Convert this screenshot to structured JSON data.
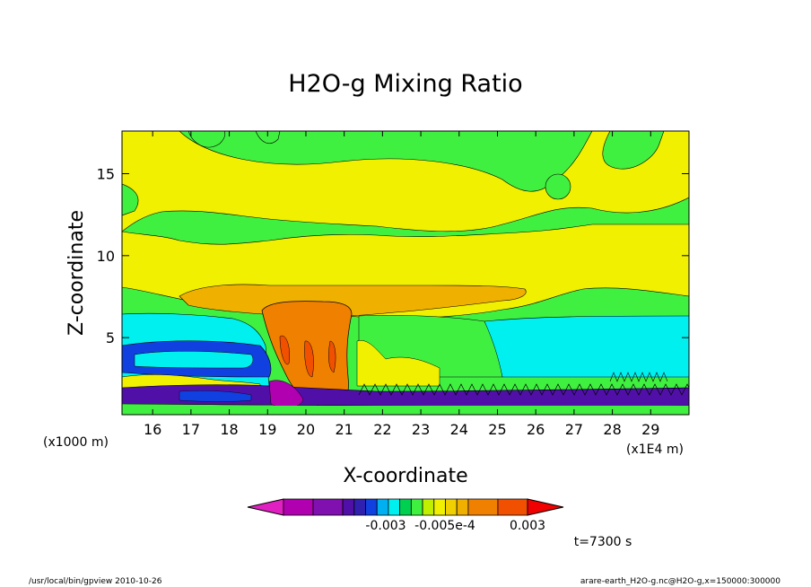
{
  "chart_data": {
    "type": "heatmap",
    "title": "H2O-g Mixing Ratio",
    "xlabel": "X-coordinate",
    "ylabel": "Z-coordinate",
    "x_unit_left": "(x1000 m)",
    "x_unit_right": "(x1E4 m)",
    "xlim": [
      15.2,
      30.0
    ],
    "ylim": [
      0.3,
      17.6
    ],
    "x_ticks": [
      "16",
      "17",
      "18",
      "19",
      "20",
      "21",
      "22",
      "23",
      "24",
      "25",
      "26",
      "27",
      "28",
      "29"
    ],
    "y_ticks": [
      "5",
      "10",
      "15"
    ],
    "colorbar": {
      "labels": [
        "-0.003",
        "-0.005e-4",
        "0.003"
      ],
      "colors": [
        "#e020c0",
        "#b000b0",
        "#8010b0",
        "#5010a8",
        "#3020b0",
        "#1040e0",
        "#00b0f0",
        "#00f0f0",
        "#00d050",
        "#40f040",
        "#c0f000",
        "#f0f000",
        "#f0d000",
        "#f0b000",
        "#f08000",
        "#f05000",
        "#f00000"
      ]
    },
    "time_label": "t=7300 s",
    "grid": false,
    "legend": "colorbar-bottom"
  },
  "footer": {
    "left": "/usr/local/bin/gpview  2010-10-26",
    "right": "arare-earth_H2O-g.nc@H2O-g,x=150000:300000"
  }
}
